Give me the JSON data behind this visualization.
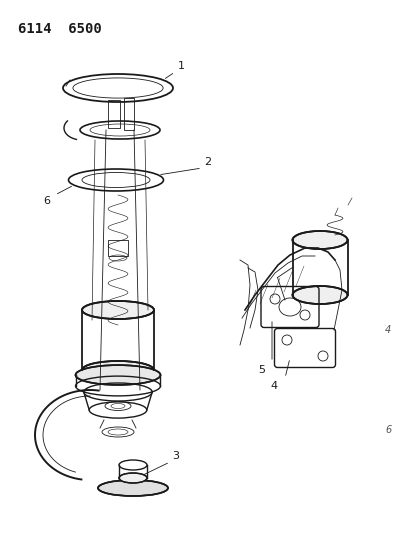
{
  "title": "6114  6500",
  "bg_color": "#ffffff",
  "line_color": "#1a1a1a",
  "title_fontsize": 10,
  "label_fontsize": 8
}
